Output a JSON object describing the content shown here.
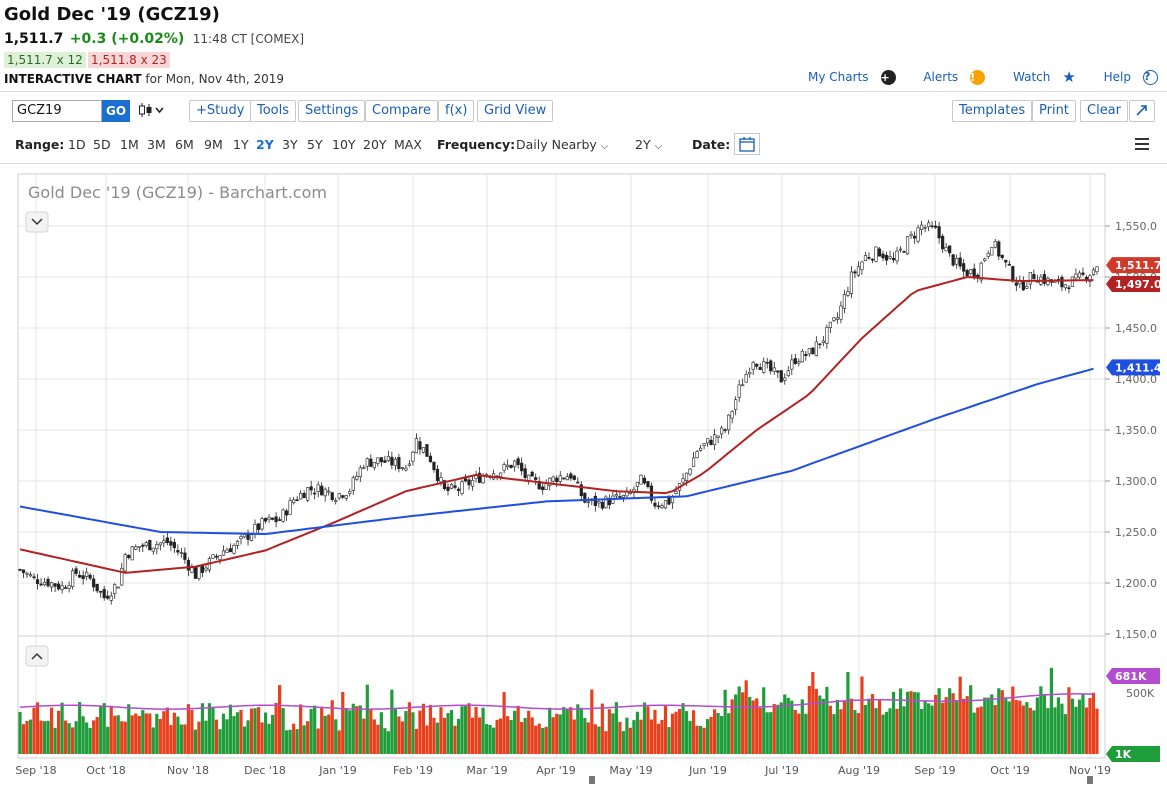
{
  "header": {
    "title": "Gold Dec '19 (GCZ19)",
    "last": "1,511.7",
    "change": "+0.3 (+0.02%)",
    "time": "11:48 CT [COMEX]",
    "bid": "1,511.7 x 12",
    "ask": "1,511.8 x 23",
    "interactive_label": "INTERACTIVE CHART",
    "interactive_date": "for Mon, Nov 4th, 2019"
  },
  "toplinks": {
    "my_charts": "My Charts",
    "alerts": "Alerts",
    "watch": "Watch",
    "help": "Help"
  },
  "toolbar": {
    "symbol_value": "GCZ19",
    "go": "GO",
    "study": "+Study",
    "tools": "Tools",
    "settings": "Settings",
    "compare": "Compare",
    "fx": "f(x)",
    "grid_view": "Grid View",
    "templates": "Templates",
    "print": "Print",
    "clear": "Clear",
    "expand_icon": "expand-arrow-icon"
  },
  "range": {
    "label": "Range:",
    "options": [
      "1D",
      "5D",
      "1M",
      "3M",
      "6M",
      "9M",
      "1Y",
      "2Y",
      "3Y",
      "5Y",
      "10Y",
      "20Y",
      "MAX"
    ],
    "active": "2Y",
    "frequency_label": "Frequency:",
    "frequency_value": "Daily Nearby",
    "period_value": "2Y",
    "date_label": "Date:"
  },
  "colors": {
    "up": "#1f9d3a",
    "down": "#e8401c",
    "ma50": "#b22222",
    "ma200": "#1f4fe0",
    "volma": "#b44ccf",
    "grid": "#e6e6e6"
  },
  "chart_data": {
    "type": "candlestick",
    "title": "Gold Dec '19 (GCZ19) - Barchart.com",
    "price_axis": {
      "ticks": [
        1150,
        1200,
        1250,
        1300,
        1350,
        1400,
        1450,
        1500,
        1550
      ],
      "tick_labels": [
        "1,150.0",
        "1,200.0",
        "1,250.0",
        "1,300.0",
        "1,350.0",
        "1,400.0",
        "1,450.0",
        "1,500.0",
        "1,550.0"
      ],
      "range": [
        1150,
        1570
      ]
    },
    "x_axis": {
      "labels": [
        "Sep '18",
        "Oct '18",
        "Nov '18",
        "Dec '18",
        "Jan '19",
        "Feb '19",
        "Mar '19",
        "Apr '19",
        "May '19",
        "Jun '19",
        "Jul '19",
        "Aug '19",
        "Sep '19",
        "Oct '19",
        "Nov '19"
      ]
    },
    "tags": {
      "last": "1,511.7",
      "ma50": "1,497.0",
      "ma200": "1,411.4",
      "vol_ma": "681K",
      "vol_tick": "500K",
      "vol_min": "1K"
    },
    "price_path": [
      [
        0,
        1213
      ],
      [
        4,
        1204
      ],
      [
        8,
        1201
      ],
      [
        12,
        1196
      ],
      [
        16,
        1210
      ],
      [
        20,
        1204
      ],
      [
        24,
        1186
      ],
      [
        28,
        1200
      ],
      [
        30,
        1228
      ],
      [
        34,
        1236
      ],
      [
        38,
        1238
      ],
      [
        42,
        1240
      ],
      [
        46,
        1228
      ],
      [
        50,
        1208
      ],
      [
        54,
        1220
      ],
      [
        58,
        1232
      ],
      [
        62,
        1238
      ],
      [
        66,
        1250
      ],
      [
        70,
        1260
      ],
      [
        74,
        1262
      ],
      [
        78,
        1282
      ],
      [
        82,
        1292
      ],
      [
        86,
        1292
      ],
      [
        90,
        1286
      ],
      [
        94,
        1292
      ],
      [
        98,
        1318
      ],
      [
        102,
        1320
      ],
      [
        106,
        1318
      ],
      [
        110,
        1314
      ],
      [
        113,
        1340
      ],
      [
        117,
        1322
      ],
      [
        121,
        1290
      ],
      [
        125,
        1292
      ],
      [
        129,
        1300
      ],
      [
        133,
        1308
      ],
      [
        137,
        1310
      ],
      [
        141,
        1318
      ],
      [
        145,
        1300
      ],
      [
        149,
        1296
      ],
      [
        153,
        1304
      ],
      [
        157,
        1306
      ],
      [
        161,
        1280
      ],
      [
        165,
        1278
      ],
      [
        169,
        1282
      ],
      [
        173,
        1284
      ],
      [
        177,
        1300
      ],
      [
        181,
        1278
      ],
      [
        185,
        1280
      ],
      [
        189,
        1300
      ],
      [
        193,
        1330
      ],
      [
        197,
        1340
      ],
      [
        201,
        1350
      ],
      [
        205,
        1390
      ],
      [
        209,
        1420
      ],
      [
        213,
        1410
      ],
      [
        217,
        1400
      ],
      [
        221,
        1420
      ],
      [
        225,
        1425
      ],
      [
        229,
        1440
      ],
      [
        233,
        1460
      ],
      [
        237,
        1500
      ],
      [
        241,
        1520
      ],
      [
        245,
        1525
      ],
      [
        249,
        1515
      ],
      [
        253,
        1535
      ],
      [
        257,
        1550
      ],
      [
        261,
        1545
      ],
      [
        265,
        1520
      ],
      [
        269,
        1505
      ],
      [
        273,
        1505
      ],
      [
        277,
        1535
      ],
      [
        281,
        1512
      ],
      [
        285,
        1490
      ],
      [
        289,
        1502
      ],
      [
        293,
        1496
      ],
      [
        297,
        1492
      ],
      [
        301,
        1497
      ],
      [
        305,
        1504
      ],
      [
        307,
        1512
      ]
    ],
    "ma50_path": [
      [
        0,
        1233
      ],
      [
        30,
        1210
      ],
      [
        50,
        1216
      ],
      [
        70,
        1232
      ],
      [
        90,
        1260
      ],
      [
        110,
        1290
      ],
      [
        130,
        1306
      ],
      [
        150,
        1298
      ],
      [
        170,
        1290
      ],
      [
        185,
        1288
      ],
      [
        195,
        1308
      ],
      [
        210,
        1350
      ],
      [
        225,
        1385
      ],
      [
        240,
        1440
      ],
      [
        255,
        1486
      ],
      [
        270,
        1500
      ],
      [
        285,
        1496
      ],
      [
        307,
        1497
      ]
    ],
    "ma200_path": [
      [
        0,
        1275
      ],
      [
        40,
        1250
      ],
      [
        70,
        1248
      ],
      [
        110,
        1265
      ],
      [
        150,
        1280
      ],
      [
        190,
        1285
      ],
      [
        220,
        1310
      ],
      [
        260,
        1360
      ],
      [
        290,
        1395
      ],
      [
        307,
        1411
      ]
    ]
  }
}
